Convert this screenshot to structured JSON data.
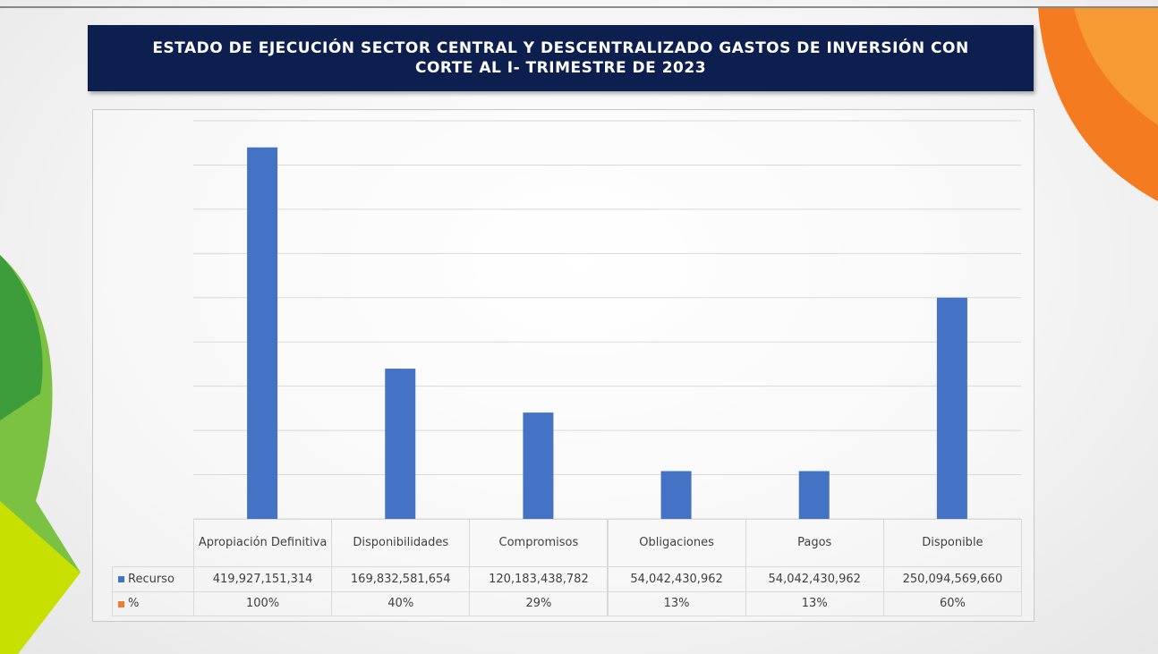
{
  "chart_data": {
    "type": "bar",
    "title": "ESTADO DE EJECUCIÓN SECTOR CENTRAL Y DESCENTRALIZADO GASTOS DE INVERSIÓN  CON CORTE AL I- TRIMESTRE DE 2023",
    "categories": [
      "Apropiación Definitiva",
      "Disponibilidades",
      "Compromisos",
      "Obligaciones",
      "Pagos",
      "Disponible"
    ],
    "series": [
      {
        "name": "Recurso",
        "color": "#4472c4",
        "values": [
          419927151314,
          169832581654,
          120183438782,
          54042430962,
          54042430962,
          250094569660
        ],
        "value_labels": [
          "419,927,151,314",
          "169,832,581,654",
          "120,183,438,782",
          "54,042,430,962",
          "54,042,430,962",
          "250,094,569,660"
        ]
      },
      {
        "name": "%",
        "color": "#ed7d31",
        "values": [
          100,
          40,
          29,
          13,
          13,
          60
        ],
        "value_labels": [
          "100%",
          "40%",
          "29%",
          "13%",
          "13%",
          "60%"
        ]
      }
    ],
    "ylim": [
      0,
      450000000000
    ],
    "yticks": [
      0,
      50000000000,
      100000000000,
      150000000000,
      200000000000,
      250000000000,
      300000000000,
      350000000000,
      400000000000,
      450000000000
    ],
    "grid": true,
    "legend": "table"
  }
}
